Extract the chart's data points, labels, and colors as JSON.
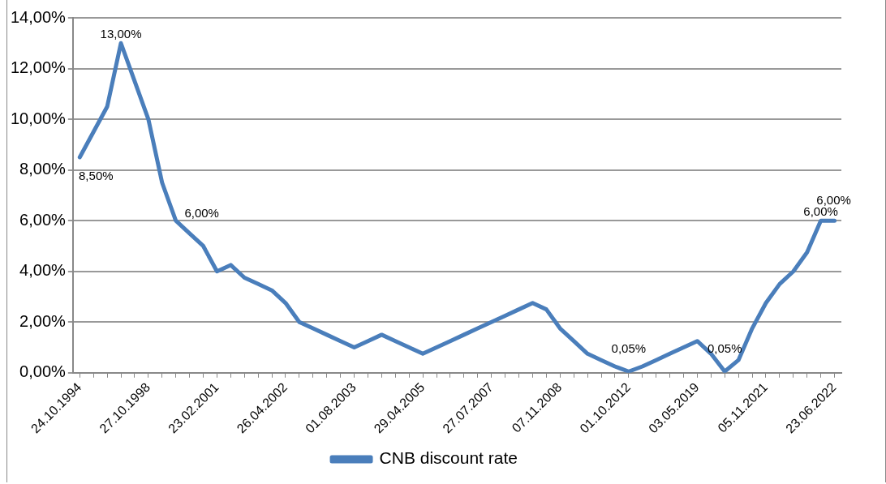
{
  "chart_data": {
    "type": "line",
    "categories": [
      "24.10.1994",
      null,
      null,
      null,
      null,
      "27.10.1998",
      null,
      null,
      null,
      null,
      "23.02.2001",
      null,
      null,
      null,
      null,
      "26.04.2002",
      null,
      null,
      null,
      null,
      "01.08.2003",
      null,
      null,
      null,
      null,
      "29.04.2005",
      null,
      null,
      null,
      null,
      "27.07.2007",
      null,
      null,
      null,
      null,
      "07.11.2008",
      null,
      null,
      null,
      null,
      "01.10.2012",
      null,
      null,
      null,
      null,
      "03.05.2019",
      null,
      null,
      null,
      null,
      "05.11.2021",
      null,
      null,
      null,
      null,
      "23.06.2022"
    ],
    "series": [
      {
        "name": "CNB discount rate",
        "color": "#4a7ebb",
        "values": [
          8.5,
          9.5,
          10.5,
          13,
          11.5,
          10,
          7.5,
          6,
          5.5,
          5,
          4,
          4.25,
          3.75,
          3.5,
          3.25,
          2.75,
          2,
          1.75,
          1.5,
          1.25,
          1,
          1.25,
          1.5,
          1.25,
          1,
          0.75,
          1,
          1.25,
          1.5,
          1.75,
          2,
          2.25,
          2.5,
          2.75,
          2.5,
          1.75,
          1.25,
          0.75,
          0.5,
          0.25,
          0.05,
          0.25,
          0.5,
          0.75,
          1,
          1.25,
          0.75,
          0.05,
          0.5,
          1.75,
          2.75,
          3.5,
          4,
          4.75,
          6,
          6
        ],
        "value_labels": [
          "8,50%",
          null,
          null,
          "13,00%",
          null,
          null,
          null,
          "6,00%",
          null,
          null,
          null,
          null,
          null,
          null,
          null,
          null,
          null,
          null,
          null,
          null,
          null,
          null,
          null,
          null,
          null,
          null,
          null,
          null,
          null,
          null,
          null,
          null,
          null,
          null,
          null,
          null,
          null,
          null,
          null,
          null,
          "0,05%",
          null,
          null,
          null,
          null,
          null,
          null,
          "0,05%",
          null,
          null,
          null,
          null,
          null,
          null,
          "6,00%",
          "6,00%"
        ]
      }
    ],
    "ylim": [
      0,
      14
    ],
    "yticks": [
      {
        "value": 0,
        "label": "0,00%"
      },
      {
        "value": 2,
        "label": "2,00%"
      },
      {
        "value": 4,
        "label": "4,00%"
      },
      {
        "value": 6,
        "label": "6,00%"
      },
      {
        "value": 8,
        "label": "8,00%"
      },
      {
        "value": 10,
        "label": "10,00%"
      },
      {
        "value": 12,
        "label": "12,00%"
      },
      {
        "value": 14,
        "label": "14,00%"
      }
    ],
    "grid": "y",
    "legend": "bottom",
    "marker": "none",
    "line_style": "solid"
  }
}
